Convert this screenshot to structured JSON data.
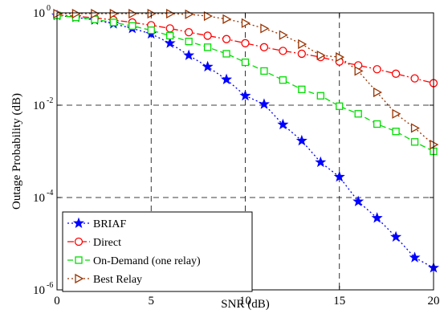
{
  "chart_data": {
    "type": "line",
    "xlabel": "SNR (dB)",
    "ylabel": "Outage Probability (dB)",
    "xlim": [
      0,
      20
    ],
    "ylim_log10": [
      -6,
      0
    ],
    "y_scale": "log",
    "grid": "dashed major grid",
    "legend_position": "bottom-left",
    "x_ticks": [
      0,
      5,
      10,
      15,
      20
    ],
    "x_tick_labels": [
      "0",
      "5",
      "10",
      "15",
      "20"
    ],
    "y_ticks": [
      {
        "base": "10",
        "exp": "0"
      },
      {
        "base": "10",
        "exp": "-2"
      },
      {
        "base": "10",
        "exp": "-4"
      },
      {
        "base": "10",
        "exp": "-6"
      }
    ],
    "x": [
      0,
      1,
      2,
      3,
      4,
      5,
      6,
      7,
      8,
      9,
      10,
      11,
      12,
      13,
      14,
      15,
      16,
      17,
      18,
      19,
      20
    ],
    "series": [
      {
        "name": "BRIAF",
        "color": "#0000ff",
        "dash": "dotted",
        "marker": "star",
        "values": [
          0.88,
          0.8,
          0.7,
          0.58,
          0.46,
          0.35,
          0.22,
          0.12,
          0.068,
          0.036,
          0.016,
          0.0105,
          0.0038,
          0.0017,
          0.00058,
          0.00028,
          8.2e-05,
          3.6e-05,
          1.4e-05,
          5e-06,
          3e-06
        ]
      },
      {
        "name": "Direct",
        "color": "#ff0000",
        "dash": "dashdot",
        "marker": "circle",
        "values": [
          0.9,
          0.84,
          0.78,
          0.7,
          0.62,
          0.54,
          0.46,
          0.38,
          0.32,
          0.27,
          0.22,
          0.18,
          0.15,
          0.13,
          0.11,
          0.088,
          0.073,
          0.06,
          0.048,
          0.038,
          0.03
        ]
      },
      {
        "name": "On-Demand (one relay)",
        "color": "#00dd00",
        "dash": "dashed",
        "marker": "square",
        "values": [
          0.88,
          0.8,
          0.72,
          0.62,
          0.52,
          0.42,
          0.32,
          0.24,
          0.18,
          0.13,
          0.085,
          0.055,
          0.035,
          0.022,
          0.016,
          0.0095,
          0.0065,
          0.0039,
          0.0027,
          0.0016,
          0.001
        ]
      },
      {
        "name": "Best Relay",
        "color": "#993300",
        "dash": "dotted",
        "marker": "triangle-right",
        "values": [
          0.96,
          0.96,
          0.96,
          0.96,
          0.96,
          0.96,
          0.96,
          0.93,
          0.85,
          0.73,
          0.6,
          0.46,
          0.33,
          0.21,
          0.12,
          0.11,
          0.055,
          0.019,
          0.0065,
          0.0032,
          0.0014
        ]
      }
    ]
  }
}
